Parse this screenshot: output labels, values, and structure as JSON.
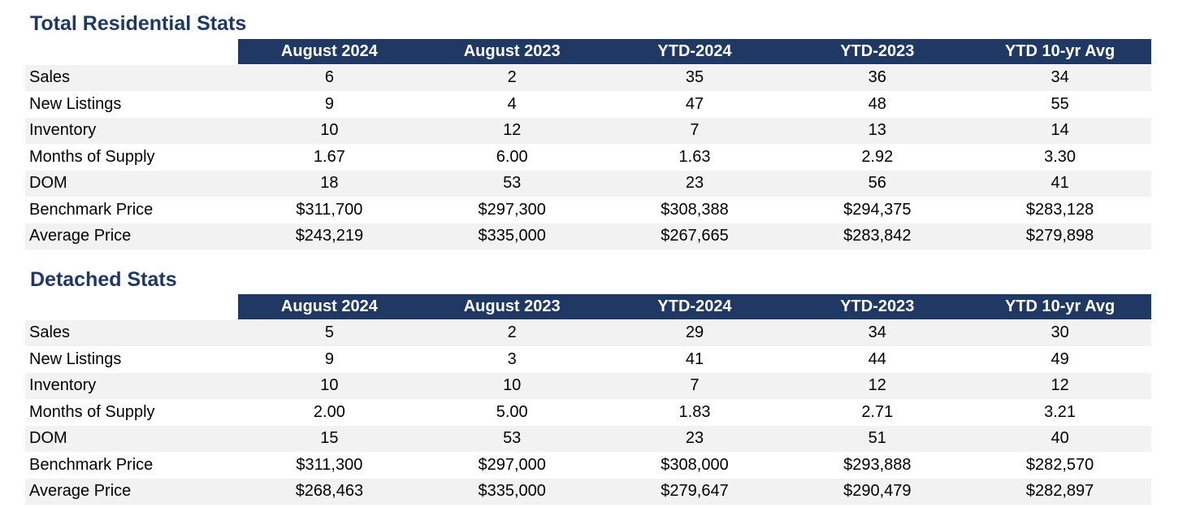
{
  "tables": [
    {
      "title": "Total Residential Stats",
      "headers": [
        "August 2024",
        "August 2023",
        "YTD-2024",
        "YTD-2023",
        "YTD 10-yr Avg"
      ],
      "rows": [
        {
          "label": "Sales",
          "values": [
            "6",
            "2",
            "35",
            "36",
            "34"
          ]
        },
        {
          "label": "New Listings",
          "values": [
            "9",
            "4",
            "47",
            "48",
            "55"
          ]
        },
        {
          "label": "Inventory",
          "values": [
            "10",
            "12",
            "7",
            "13",
            "14"
          ]
        },
        {
          "label": "Months of Supply",
          "values": [
            "1.67",
            "6.00",
            "1.63",
            "2.92",
            "3.30"
          ]
        },
        {
          "label": "DOM",
          "values": [
            "18",
            "53",
            "23",
            "56",
            "41"
          ]
        },
        {
          "label": "Benchmark Price",
          "values": [
            "$311,700",
            "$297,300",
            "$308,388",
            "$294,375",
            "$283,128"
          ]
        },
        {
          "label": "Average Price",
          "values": [
            "$243,219",
            "$335,000",
            "$267,665",
            "$283,842",
            "$279,898"
          ]
        }
      ]
    },
    {
      "title": "Detached Stats",
      "headers": [
        "August 2024",
        "August 2023",
        "YTD-2024",
        "YTD-2023",
        "YTD 10-yr Avg"
      ],
      "rows": [
        {
          "label": "Sales",
          "values": [
            "5",
            "2",
            "29",
            "34",
            "30"
          ]
        },
        {
          "label": "New Listings",
          "values": [
            "9",
            "3",
            "41",
            "44",
            "49"
          ]
        },
        {
          "label": "Inventory",
          "values": [
            "10",
            "10",
            "7",
            "12",
            "12"
          ]
        },
        {
          "label": "Months of Supply",
          "values": [
            "2.00",
            "5.00",
            "1.83",
            "2.71",
            "3.21"
          ]
        },
        {
          "label": "DOM",
          "values": [
            "15",
            "53",
            "23",
            "51",
            "40"
          ]
        },
        {
          "label": "Benchmark Price",
          "values": [
            "$311,300",
            "$297,000",
            "$308,000",
            "$293,888",
            "$282,570"
          ]
        },
        {
          "label": "Average Price",
          "values": [
            "$268,463",
            "$335,000",
            "$279,647",
            "$290,479",
            "$282,897"
          ]
        }
      ]
    }
  ],
  "colors": {
    "title_text": "#1f3864",
    "header_bg": "#1f3864",
    "header_text": "#ffffff",
    "shaded_row": "#f2f2f2"
  }
}
